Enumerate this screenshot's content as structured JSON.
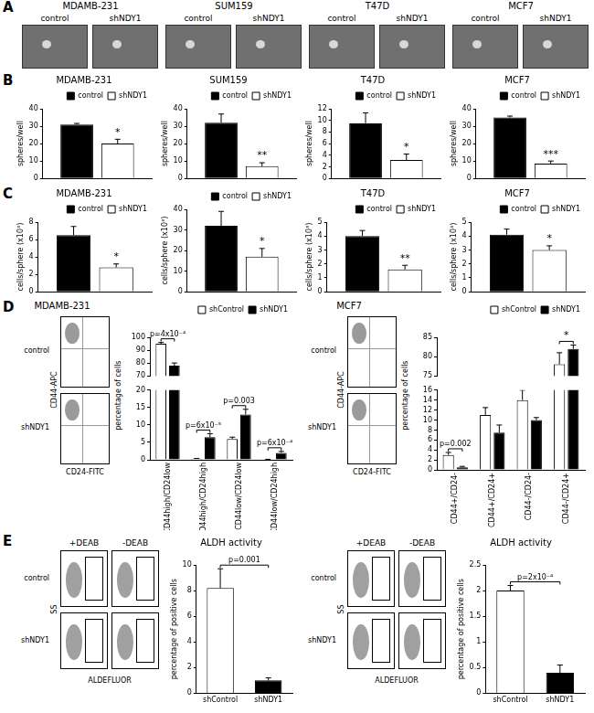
{
  "panel_letters": [
    "A",
    "B",
    "C",
    "D",
    "E"
  ],
  "micrographs": [
    {
      "title": "MDAMB-231",
      "conditions": [
        "control",
        "shNDY1"
      ]
    },
    {
      "title": "SUM159",
      "conditions": [
        "control",
        "shNDY1"
      ]
    },
    {
      "title": "T47D",
      "conditions": [
        "control",
        "shNDY1"
      ]
    },
    {
      "title": "MCF7",
      "conditions": [
        "control",
        "shNDY1"
      ]
    }
  ],
  "flow_plots": [
    {
      "title": "MDAMB-231",
      "rows": [
        "control",
        "shNDY1"
      ],
      "x_label": "CD24-FITC",
      "y_label": "CD44-APC"
    },
    {
      "title": "MCF7",
      "rows": [
        "control",
        "shNDY1"
      ],
      "x_label": "CD24-FITC",
      "y_label": "CD44-APC"
    },
    {
      "columns": [
        "+DEAB",
        "-DEAB"
      ],
      "rows": [
        "control",
        "shNDY1"
      ],
      "x_label": "ALDEFLUOR",
      "y_label": "SS"
    },
    {
      "columns": [
        "+DEAB",
        "-DEAB"
      ],
      "rows": [
        "control",
        "shNDY1"
      ],
      "x_label": "ALDEFLUOR",
      "y_label": "SS"
    }
  ],
  "chart_data": [
    {
      "type": "bar",
      "title": "MDAMB-231",
      "y_label": "spheres/well",
      "categories": [
        null
      ],
      "series": [
        {
          "name": "control",
          "color": "#000000",
          "values": [
            31
          ],
          "errors": [
            0.6
          ]
        },
        {
          "name": "shNDY1",
          "color": "#ffffff",
          "values": [
            20
          ],
          "errors": [
            2.5
          ]
        }
      ],
      "ylim": [
        0,
        40
      ],
      "yticks": [
        0,
        10,
        20,
        30,
        40
      ],
      "grid": false,
      "legend": "top-right",
      "tick_labels": "y",
      "annotations": [
        {
          "text": "*",
          "series": 1,
          "category": 0
        }
      ]
    },
    {
      "type": "bar",
      "title": "SUM159",
      "y_label": "spheres/well",
      "categories": [
        null
      ],
      "series": [
        {
          "name": "control",
          "color": "#000000",
          "values": [
            32
          ],
          "errors": [
            5
          ]
        },
        {
          "name": "shNDY1",
          "color": "#ffffff",
          "values": [
            7
          ],
          "errors": [
            2
          ]
        }
      ],
      "ylim": [
        0,
        40
      ],
      "yticks": [
        0,
        10,
        20,
        30,
        40
      ],
      "grid": false,
      "legend": "top-right",
      "tick_labels": "y",
      "annotations": [
        {
          "text": "**",
          "series": 1,
          "category": 0
        }
      ]
    },
    {
      "type": "bar",
      "title": "T47D",
      "y_label": "spheres/well",
      "categories": [
        null
      ],
      "series": [
        {
          "name": "control",
          "color": "#000000",
          "values": [
            9.5
          ],
          "errors": [
            1.8
          ]
        },
        {
          "name": "shNDY1",
          "color": "#ffffff",
          "values": [
            3.2
          ],
          "errors": [
            1
          ]
        }
      ],
      "ylim": [
        0,
        12
      ],
      "yticks": [
        0,
        2,
        4,
        6,
        8,
        10,
        12
      ],
      "grid": false,
      "legend": "top-right",
      "tick_labels": "y",
      "annotations": [
        {
          "text": "*",
          "series": 1,
          "category": 0
        }
      ]
    },
    {
      "type": "bar",
      "title": "MCF7",
      "y_label": "spheres/well",
      "categories": [
        null
      ],
      "series": [
        {
          "name": "control",
          "color": "#000000",
          "values": [
            35
          ],
          "errors": [
            0.8
          ]
        },
        {
          "name": "shNDY1",
          "color": "#ffffff",
          "values": [
            8.5
          ],
          "errors": [
            1.5
          ]
        }
      ],
      "ylim": [
        0,
        40
      ],
      "yticks": [
        0,
        10,
        20,
        30,
        40
      ],
      "grid": false,
      "legend": "top-right",
      "tick_labels": "y",
      "annotations": [
        {
          "text": "***",
          "series": 1,
          "category": 0
        }
      ]
    },
    {
      "type": "bar",
      "title": "MDAMB-231",
      "y_label": "cells/sphere (x10³)",
      "categories": [
        null
      ],
      "series": [
        {
          "name": "control",
          "color": "#000000",
          "values": [
            6.5
          ],
          "errors": [
            1
          ]
        },
        {
          "name": "shNDY1",
          "color": "#ffffff",
          "values": [
            2.8
          ],
          "errors": [
            0.4
          ]
        }
      ],
      "ylim": [
        0,
        8
      ],
      "yticks": [
        0,
        2,
        4,
        6,
        8
      ],
      "grid": false,
      "legend": "top-right",
      "tick_labels": "y",
      "annotations": [
        {
          "text": "*",
          "series": 1,
          "category": 0
        }
      ]
    },
    {
      "type": "bar",
      "y_label": "cells/sphere (x10³)",
      "categories": [
        null
      ],
      "series": [
        {
          "name": "control",
          "color": "#000000",
          "values": [
            32
          ],
          "errors": [
            7
          ]
        },
        {
          "name": "shNDY1",
          "color": "#ffffff",
          "values": [
            17
          ],
          "errors": [
            4
          ]
        }
      ],
      "ylim": [
        0,
        40
      ],
      "yticks": [
        0,
        10,
        20,
        30,
        40
      ],
      "grid": false,
      "legend": "top-right",
      "tick_labels": "y",
      "annotations": [
        {
          "text": "*",
          "series": 1,
          "category": 0
        }
      ]
    },
    {
      "type": "bar",
      "title": "T47D",
      "y_label": "cells/sphere (x10³)",
      "categories": [
        null
      ],
      "series": [
        {
          "name": "control",
          "color": "#000000",
          "values": [
            4
          ],
          "errors": [
            0.4
          ]
        },
        {
          "name": "shNDY1",
          "color": "#ffffff",
          "values": [
            1.6
          ],
          "errors": [
            0.3
          ]
        }
      ],
      "ylim": [
        0,
        5
      ],
      "yticks": [
        0,
        1,
        2,
        3,
        4,
        5
      ],
      "grid": false,
      "legend": "top-right",
      "tick_labels": "y",
      "annotations": [
        {
          "text": "**",
          "series": 1,
          "category": 0
        }
      ]
    },
    {
      "type": "bar",
      "title": "MCF7",
      "y_label": "cells/sphere (x10³)",
      "categories": [
        null
      ],
      "series": [
        {
          "name": "control",
          "color": "#000000",
          "values": [
            4.1
          ],
          "errors": [
            0.4
          ]
        },
        {
          "name": "shNDY1",
          "color": "#ffffff",
          "values": [
            3
          ],
          "errors": [
            0.3
          ]
        }
      ],
      "ylim": [
        0,
        5
      ],
      "yticks": [
        0,
        1,
        2,
        3,
        4,
        5
      ],
      "grid": false,
      "legend": "top-right",
      "tick_labels": "y",
      "annotations": [
        {
          "text": "*",
          "series": 1,
          "category": 0
        }
      ]
    },
    {
      "type": "bar",
      "y_label": "percentage of cells",
      "categories": [
        "CD44high/CD24low",
        "CD44high/CD24high",
        "CD44low/CD24low",
        "CD44low/CD24high"
      ],
      "series": [
        {
          "name": "shControl",
          "color": "#ffffff",
          "values": [
            95,
            0.3,
            6,
            0.1
          ],
          "errors": [
            1,
            0.1,
            0.5,
            0.05
          ]
        },
        {
          "name": "shNDY1",
          "color": "#000000",
          "values": [
            78,
            6.5,
            13,
            2
          ],
          "errors": [
            2,
            1,
            1.5,
            0.4
          ]
        }
      ],
      "ylim": [
        0,
        100
      ],
      "yticks": [
        0,
        5,
        10,
        15,
        20,
        70,
        80,
        90,
        100
      ],
      "grid": false,
      "legend": "top-right",
      "annotations": [
        {
          "text": "p=4x10⁻⁴",
          "category": 0
        },
        {
          "text": "p=6x10⁻⁵",
          "category": 1
        },
        {
          "text": "p=0.003",
          "category": 2
        },
        {
          "text": "p=6x10⁻⁴",
          "category": 3
        }
      ]
    },
    {
      "type": "bar",
      "y_label": "percentage of cells",
      "categories": [
        "CD44+/CD24-",
        "CD44+/CD24+",
        "CD44-/CD24-",
        "CD44-/CD24+"
      ],
      "series": [
        {
          "name": "shControl",
          "color": "#ffffff",
          "values": [
            3,
            11,
            14,
            78
          ],
          "errors": [
            0.5,
            1.5,
            2,
            3
          ]
        },
        {
          "name": "shNDY1",
          "color": "#000000",
          "values": [
            0.5,
            7.5,
            10,
            82
          ],
          "errors": [
            0.2,
            1.5,
            0.5,
            1
          ]
        }
      ],
      "ylim": [
        0,
        85
      ],
      "yticks": [
        0,
        2,
        4,
        6,
        8,
        10,
        12,
        14,
        16,
        75,
        80,
        85
      ],
      "grid": false,
      "legend": "top-right",
      "annotations": [
        {
          "text": "p=0.002",
          "category": 0
        },
        {
          "text": "*",
          "category": 3
        }
      ]
    },
    {
      "type": "bar",
      "title": "ALDH activity",
      "y_label": "percentage of positive cells",
      "categories": [
        "shControl",
        "shNDY1"
      ],
      "values": [
        8.2,
        1
      ],
      "errors": [
        1.5,
        0.2
      ],
      "colors": [
        "#ffffff",
        "#000000"
      ],
      "ylim": [
        0,
        10
      ],
      "yticks": [
        0,
        2,
        4,
        6,
        8,
        10
      ],
      "grid": false,
      "annotations": [
        {
          "text": "p=0.001",
          "categories": [
            0,
            1
          ]
        }
      ]
    },
    {
      "type": "bar",
      "title": "ALDH activity",
      "y_label": "percentage of positive cells",
      "categories": [
        "shControl",
        "shNDY1"
      ],
      "values": [
        2,
        0.4
      ],
      "errors": [
        0.1,
        0.15
      ],
      "colors": [
        "#ffffff",
        "#000000"
      ],
      "ylim": [
        0,
        2.5
      ],
      "yticks": [
        0,
        0.5,
        1,
        1.5,
        2,
        2.5
      ],
      "grid": false,
      "annotations": [
        {
          "text": "p=2x10⁻⁴",
          "categories": [
            0,
            1
          ]
        }
      ]
    }
  ]
}
